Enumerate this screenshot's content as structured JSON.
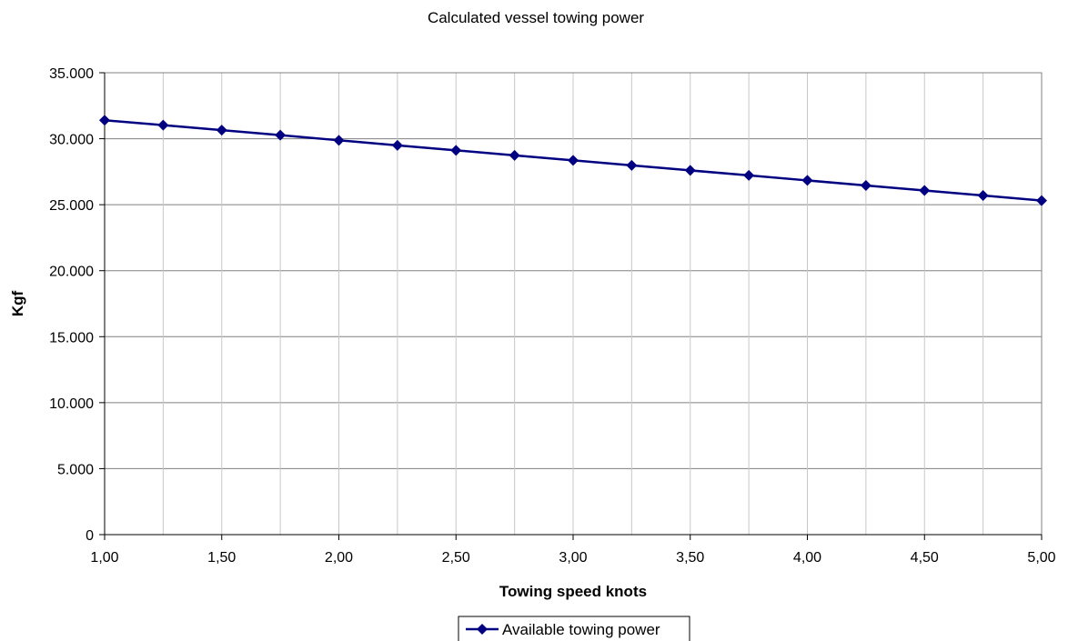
{
  "chart_data": {
    "type": "line",
    "title": "Calculated vessel towing power",
    "xlabel": "Towing speed knots",
    "ylabel": "Kgf",
    "x": [
      1.0,
      1.25,
      1.5,
      1.75,
      2.0,
      2.25,
      2.5,
      2.75,
      3.0,
      3.25,
      3.5,
      3.75,
      4.0,
      4.25,
      4.5,
      4.75,
      5.0
    ],
    "x_tick_values": [
      1.0,
      1.5,
      2.0,
      2.5,
      3.0,
      3.5,
      4.0,
      4.5,
      5.0
    ],
    "x_tick_labels": [
      "1,00",
      "1,50",
      "2,00",
      "2,50",
      "3,00",
      "3,50",
      "4,00",
      "4,50",
      "5,00"
    ],
    "y_tick_values": [
      0,
      5000,
      10000,
      15000,
      20000,
      25000,
      30000,
      35000
    ],
    "y_tick_labels": [
      "0",
      "5.000",
      "10.000",
      "15.000",
      "20.000",
      "25.000",
      "30.000",
      "35.000"
    ],
    "xlim": [
      1.0,
      5.0
    ],
    "ylim": [
      0,
      35000
    ],
    "grid": true,
    "legend_position": "bottom",
    "series": [
      {
        "name": "Available towing power",
        "color": "#000080",
        "marker": "diamond",
        "values": [
          31400,
          31030,
          30650,
          30270,
          29880,
          29500,
          29120,
          28740,
          28360,
          27980,
          27600,
          27220,
          26840,
          26460,
          26080,
          25700,
          25310
        ]
      }
    ]
  }
}
